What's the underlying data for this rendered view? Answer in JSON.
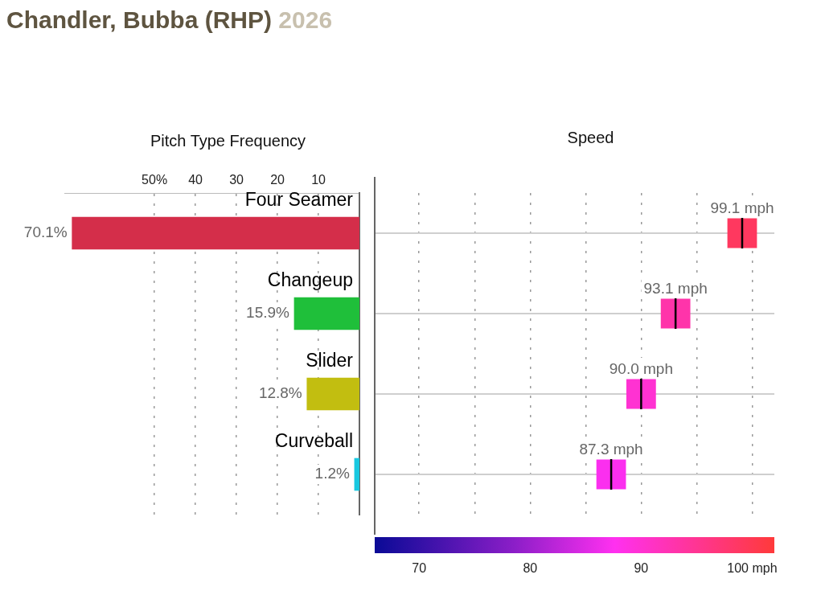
{
  "chart_data": [
    {
      "type": "bar",
      "orientation": "horizontal",
      "title": "Chandler, Bubba (RHP)",
      "subtitle": "2026",
      "xlabel": "Pitch Type Frequency",
      "categories": [
        "Four Seamer",
        "Changeup",
        "Slider",
        "Curveball"
      ],
      "values": [
        70.1,
        15.9,
        12.8,
        1.2
      ],
      "colors": [
        "#d42e4a",
        "#1fbf3a",
        "#c2be10",
        "#18c8e0"
      ],
      "value_labels": [
        "70.1%",
        "15.9%",
        "12.8%",
        "1.2%"
      ],
      "xlim": [
        72,
        0
      ],
      "xticks": [
        {
          "value": 50,
          "label": "50%"
        },
        40,
        30,
        20,
        10
      ],
      "grid": "x"
    },
    {
      "type": "scatter",
      "orientation": "horizontal",
      "title": "Speed",
      "categories": [
        null,
        null,
        null,
        null
      ],
      "values": [
        99.1,
        93.1,
        90.0,
        87.3
      ],
      "value_labels": [
        "99.1 mph",
        "93.1 mph",
        "90.0 mph",
        "87.3 mph"
      ],
      "xlim": [
        66,
        102
      ],
      "xticks": [
        70,
        {
          "value": 75,
          "label": null
        },
        80,
        {
          "value": 85,
          "label": null
        },
        90,
        {
          "value": 95,
          "label": null
        },
        {
          "value": 100,
          "label": "100 mph"
        }
      ],
      "grid": true,
      "tick_labels": "x",
      "marker": "square"
    }
  ]
}
